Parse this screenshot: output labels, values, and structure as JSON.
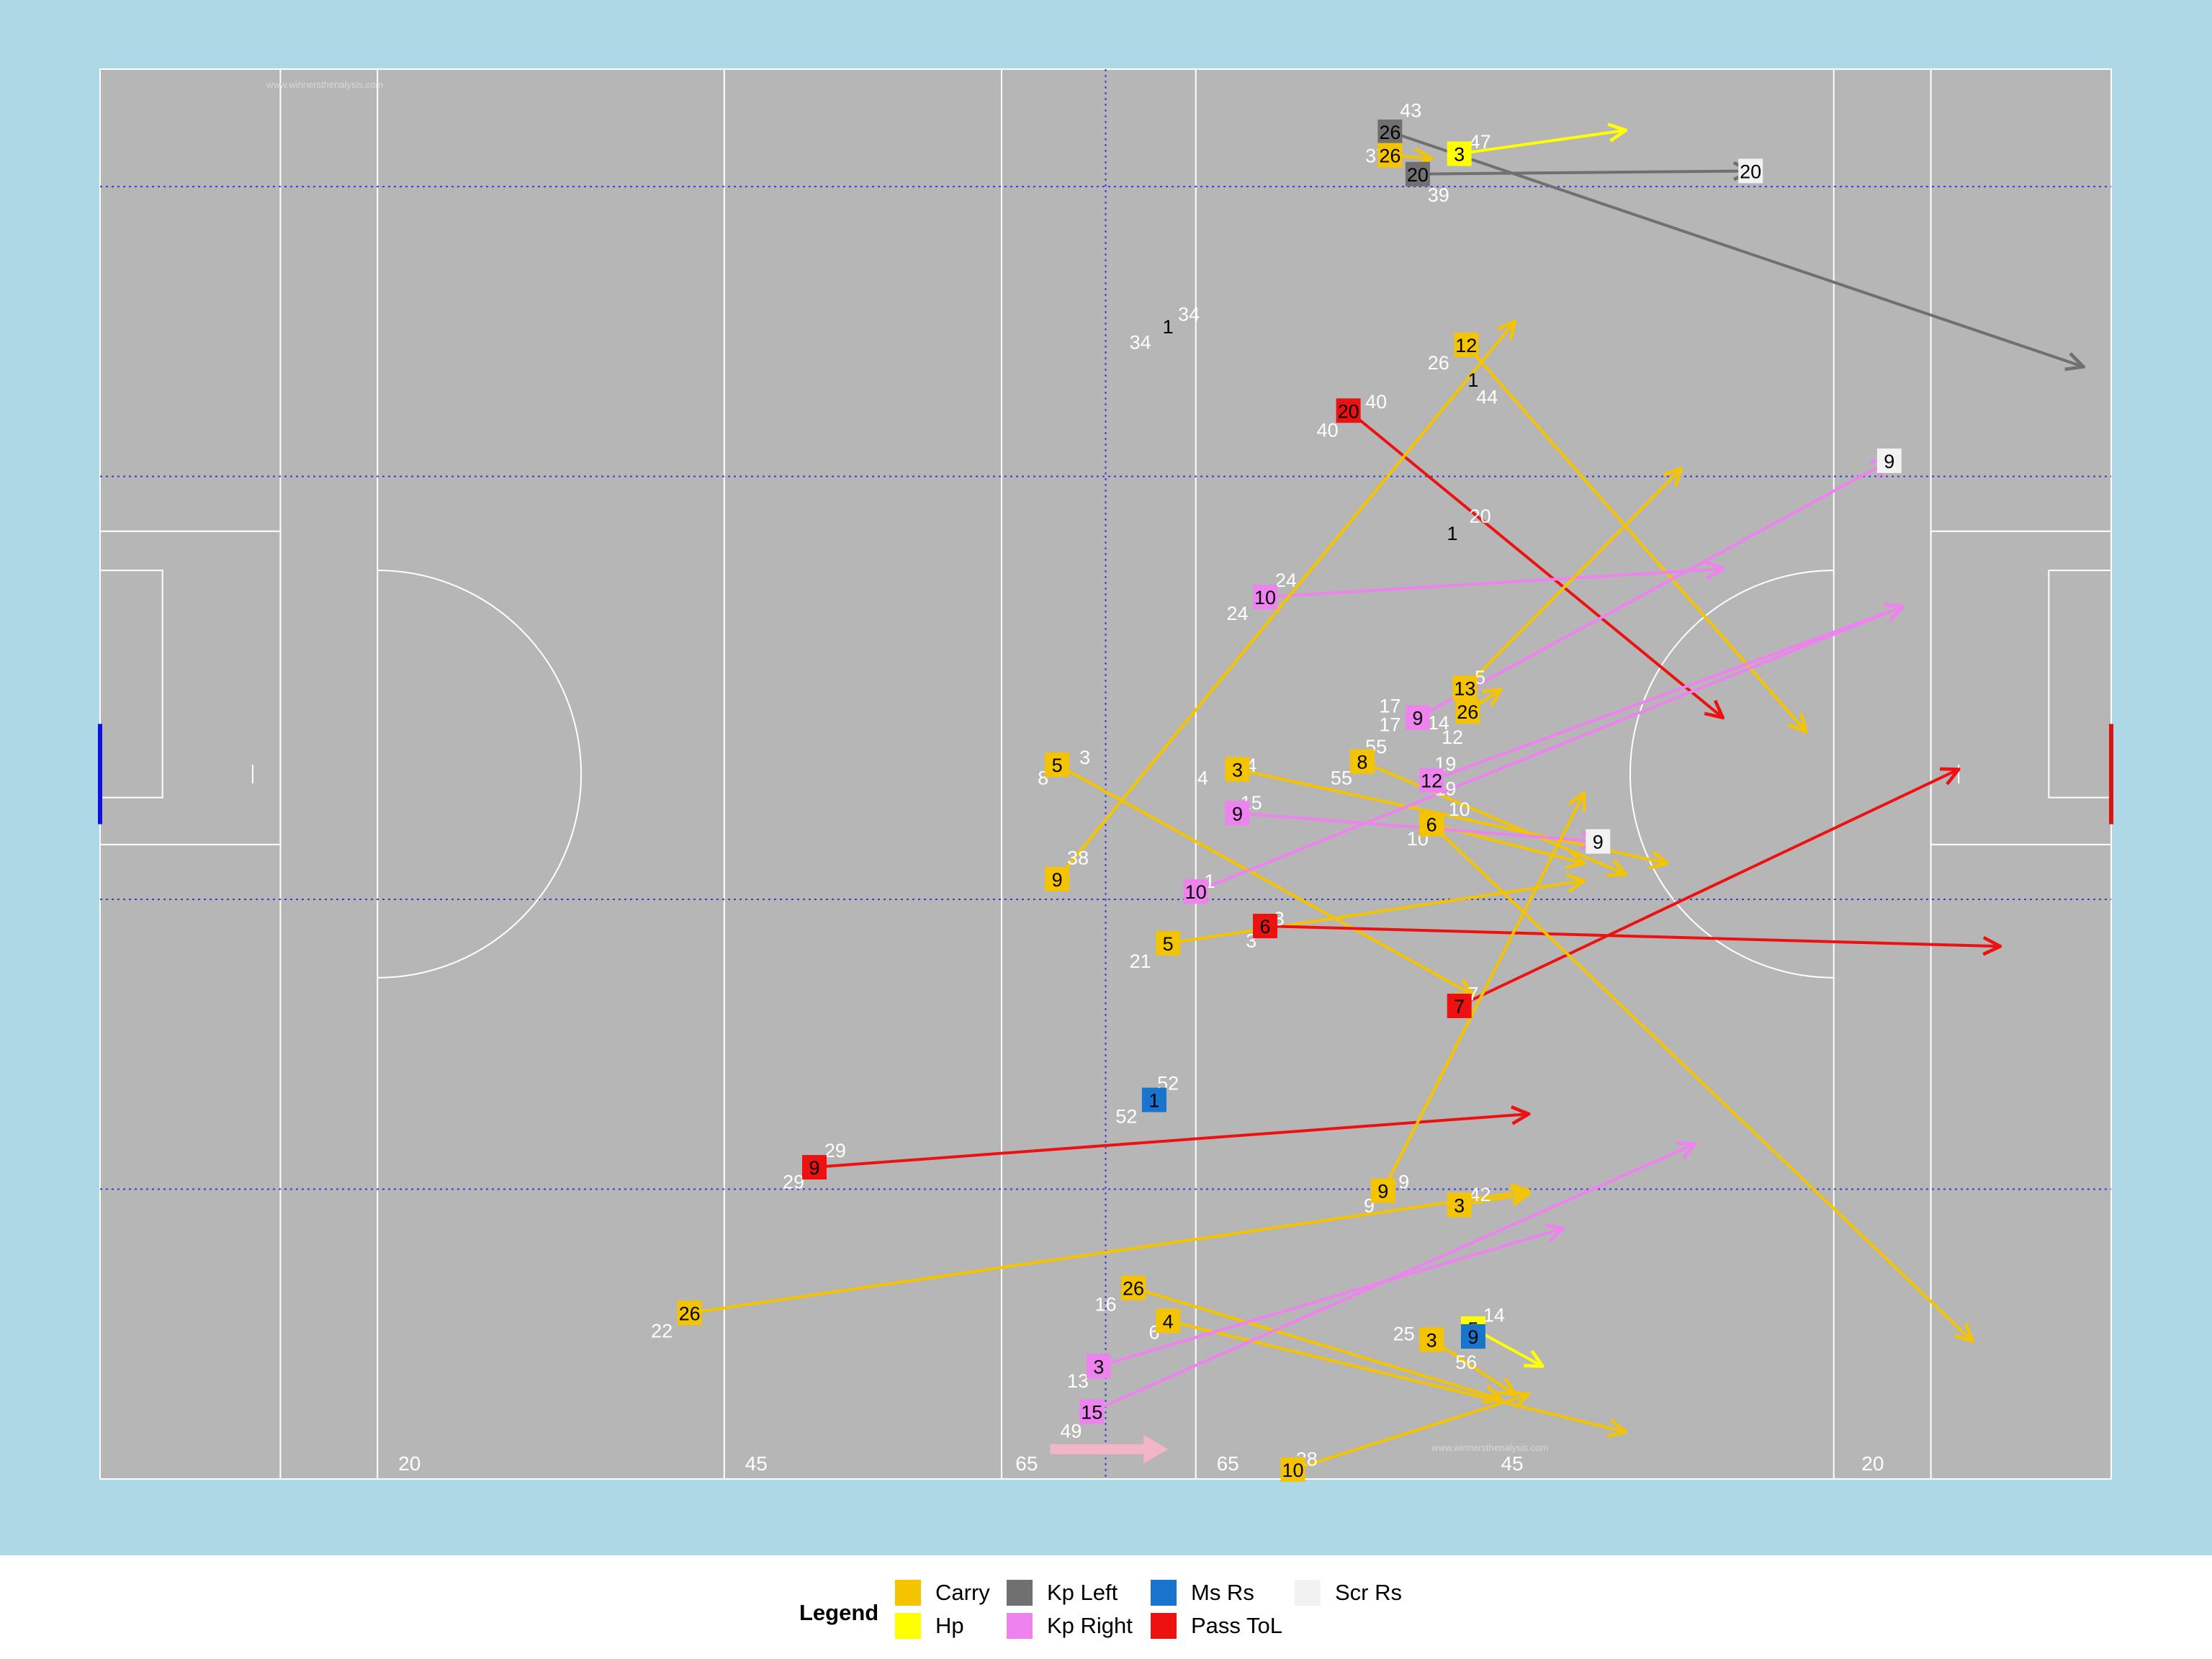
{
  "colors": {
    "background": "#add8e6",
    "pitch": "#b6b6b6",
    "lines": "#ffffff",
    "dotted": "#3b3bd6",
    "left_goal": "#1010e0",
    "right_goal": "#e01010",
    "label_white": "#ffffff",
    "label_dark": "#000000",
    "arrow_pink": "#f2b6c6",
    "watermark": "#d8d8d8"
  },
  "watermark": "www.winnersthenalysis.com",
  "distance_labels": [
    "20",
    "45",
    "65",
    "65",
    "45",
    "20"
  ],
  "legend": {
    "title": "Legend",
    "items": [
      {
        "label": "Carry",
        "color": "#f5c400"
      },
      {
        "label": "Hp",
        "color": "#ffff00"
      },
      {
        "label": "Kp Left",
        "color": "#707070"
      },
      {
        "label": "Kp Right",
        "color": "#ee82ee"
      },
      {
        "label": "Ms Rs",
        "color": "#1874cd"
      },
      {
        "label": "Pass ToL",
        "color": "#ee1111"
      },
      {
        "label": "Scr Rs",
        "color": "#f2f2f2"
      }
    ]
  },
  "chart_data": {
    "type": "scatter",
    "x_range": [
      0,
      145
    ],
    "y_range": [
      0,
      90
    ],
    "events": [
      {
        "type": "Kp Left",
        "num": "26",
        "x": 93,
        "y": 86,
        "ex": 143,
        "ey": 71
      },
      {
        "type": "Kp Left",
        "num": "20",
        "x": 95,
        "y": 83.3,
        "ex": 119,
        "ey": 83.5
      },
      {
        "type": "Carry",
        "num": "26",
        "x": 93,
        "y": 84.5,
        "ex": 96,
        "ey": 84.3
      },
      {
        "type": "Hp",
        "num": "3",
        "x": 98,
        "y": 84.6,
        "ex": 110,
        "ey": 86.1
      },
      {
        "type": "Scr Rs",
        "num": "20",
        "x": 119,
        "y": 83.5
      },
      {
        "type": "Carry",
        "num": "12",
        "x": 98.5,
        "y": 72.4,
        "ex": 123,
        "ey": 47.7
      },
      {
        "type": "Pass ToL",
        "num": "20",
        "x": 90,
        "y": 68.2,
        "ex": 117,
        "ey": 48.6
      },
      {
        "type": "Scr Rs",
        "num": "9",
        "x": 129,
        "y": 65
      },
      {
        "type": "Kp Right",
        "num": "10",
        "x": 84,
        "y": 56.3,
        "ex": 117,
        "ey": 58.1
      },
      {
        "type": "Carry",
        "num": "13",
        "x": 98.4,
        "y": 50.5,
        "ex": 114,
        "ey": 64.5
      },
      {
        "type": "Kp Right",
        "num": "9",
        "x": 95,
        "y": 48.6,
        "ex": 129,
        "ey": 65
      },
      {
        "type": "Carry",
        "num": "26",
        "x": 98.6,
        "y": 49,
        "ex": 101,
        "ey": 50.4
      },
      {
        "type": "Carry",
        "num": "5",
        "x": 69,
        "y": 45.6,
        "ex": 99,
        "ey": 30.9
      },
      {
        "type": "Carry",
        "num": "3",
        "x": 82,
        "y": 45.3,
        "ex": 113,
        "ey": 39.3
      },
      {
        "type": "Carry",
        "num": "8",
        "x": 91,
        "y": 45.8,
        "ex": 110,
        "ey": 38.6
      },
      {
        "type": "Kp Right",
        "num": "12",
        "x": 96,
        "y": 44.6,
        "ex": 130,
        "ey": 55.7
      },
      {
        "type": "Carry",
        "num": "6",
        "x": 96,
        "y": 41.8,
        "ex": 107,
        "ey": 39.3
      },
      {
        "type": "Kp Right",
        "num": "9",
        "x": 82,
        "y": 42.5,
        "ex": 108,
        "ey": 40.7
      },
      {
        "type": "Scr Rs",
        "num": "9",
        "x": 108,
        "y": 40.7
      },
      {
        "type": "Carry",
        "num": "9",
        "x": 69,
        "y": 38.3,
        "ex": 102,
        "ey": 73.9
      },
      {
        "type": "Kp Right",
        "num": "10",
        "x": 79,
        "y": 37.5,
        "ex": 130,
        "ey": 55.7
      },
      {
        "type": "Carry",
        "num": "5",
        "x": 77,
        "y": 34.2,
        "ex": 107,
        "ey": 38.2
      },
      {
        "type": "Pass ToL",
        "num": "6",
        "x": 84,
        "y": 35.3,
        "ex": 137,
        "ey": 34
      },
      {
        "type": "Pass ToL",
        "num": "7",
        "x": 98,
        "y": 30.2,
        "ex": 134,
        "ey": 45.3
      },
      {
        "type": "Ms Rs",
        "num": "1",
        "x": 76,
        "y": 24.2
      },
      {
        "type": "Pass ToL",
        "num": "9",
        "x": 51.5,
        "y": 19.9,
        "ex": 103,
        "ey": 23.3
      },
      {
        "type": "Carry",
        "num": "9",
        "x": 92.5,
        "y": 18.4,
        "ex": 107,
        "ey": 43.8
      },
      {
        "type": "Carry",
        "num": "3",
        "x": 98,
        "y": 17.5,
        "ex": 103,
        "ey": 18.2
      },
      {
        "type": "Carry",
        "num": "26",
        "x": 42.5,
        "y": 10.6,
        "ex": 103,
        "ey": 18.4
      },
      {
        "type": "Carry",
        "num": "26",
        "x": 74.5,
        "y": 12.2,
        "ex": 101,
        "ey": 5.1
      },
      {
        "type": "Carry",
        "num": "4",
        "x": 77,
        "y": 10.1,
        "ex": 110,
        "ey": 3
      },
      {
        "type": "Carry",
        "num": "3",
        "x": 96,
        "y": 8.9,
        "ex": 102,
        "ey": 5.4
      },
      {
        "type": "Hp",
        "num": "5",
        "x": 99,
        "y": 9.6,
        "ex": 104,
        "ey": 7.2
      },
      {
        "type": "Ms Rs",
        "num": "9",
        "x": 99,
        "y": 9.1
      },
      {
        "type": "Kp Right",
        "num": "3",
        "x": 72,
        "y": 7.2,
        "ex": 105.5,
        "ey": 16
      },
      {
        "type": "Kp Right",
        "num": "15",
        "x": 71.5,
        "y": 4.3,
        "ex": 115,
        "ey": 21.4
      },
      {
        "type": "Carry",
        "num": "10",
        "x": 86,
        "y": 0.6,
        "ex": 103,
        "ey": 5.4
      },
      {
        "type": "Carry",
        "num": "6",
        "x": 96,
        "y": 41.8,
        "ex": 135,
        "ey": 8.8
      }
    ],
    "labels": [
      {
        "text": "43",
        "x": 94.5,
        "y": 87.4
      },
      {
        "text": "37",
        "x": 92,
        "y": 84.5
      },
      {
        "text": "47",
        "x": 99.5,
        "y": 85.4
      },
      {
        "text": "39",
        "x": 96.5,
        "y": 82
      },
      {
        "text": "34",
        "x": 78.5,
        "y": 74.4
      },
      {
        "text": "34",
        "x": 75,
        "y": 72.6
      },
      {
        "text": "1",
        "x": 77,
        "y": 73.6,
        "dark": true
      },
      {
        "text": "26",
        "x": 96.5,
        "y": 71.3
      },
      {
        "text": "1",
        "x": 99,
        "y": 70.2,
        "dark": true
      },
      {
        "text": "44",
        "x": 100,
        "y": 69.1
      },
      {
        "text": "40",
        "x": 92,
        "y": 68.8
      },
      {
        "text": "40",
        "x": 88.5,
        "y": 67
      },
      {
        "text": "20",
        "x": 99.5,
        "y": 61.5
      },
      {
        "text": "1",
        "x": 97.5,
        "y": 60.4,
        "dark": true
      },
      {
        "text": "24",
        "x": 85.5,
        "y": 57.4
      },
      {
        "text": "24",
        "x": 82,
        "y": 55.3
      },
      {
        "text": "5",
        "x": 99.5,
        "y": 51.2
      },
      {
        "text": "17",
        "x": 93,
        "y": 49.4
      },
      {
        "text": "17",
        "x": 93,
        "y": 48.2
      },
      {
        "text": "14",
        "x": 96.5,
        "y": 48.3
      },
      {
        "text": "12",
        "x": 97.5,
        "y": 47.4
      },
      {
        "text": "3",
        "x": 71,
        "y": 46.1
      },
      {
        "text": "8",
        "x": 68,
        "y": 44.8
      },
      {
        "text": "4",
        "x": 83,
        "y": 45.6
      },
      {
        "text": "4",
        "x": 79.5,
        "y": 44.8
      },
      {
        "text": "55",
        "x": 92,
        "y": 46.8
      },
      {
        "text": "55",
        "x": 89.5,
        "y": 44.8
      },
      {
        "text": "19",
        "x": 97,
        "y": 45.7
      },
      {
        "text": "19",
        "x": 97,
        "y": 44.1
      },
      {
        "text": "10",
        "x": 98,
        "y": 42.8
      },
      {
        "text": "10",
        "x": 95,
        "y": 40.9
      },
      {
        "text": "15",
        "x": 83,
        "y": 43.2
      },
      {
        "text": "38",
        "x": 70.5,
        "y": 39.7
      },
      {
        "text": "1",
        "x": 80,
        "y": 38.2
      },
      {
        "text": "3",
        "x": 85,
        "y": 35.8
      },
      {
        "text": "3",
        "x": 83,
        "y": 34.4
      },
      {
        "text": "21",
        "x": 75,
        "y": 33.1
      },
      {
        "text": "7",
        "x": 99,
        "y": 31
      },
      {
        "text": "52",
        "x": 77,
        "y": 25.3
      },
      {
        "text": "52",
        "x": 74,
        "y": 23.2
      },
      {
        "text": "29",
        "x": 53,
        "y": 21
      },
      {
        "text": "29",
        "x": 50,
        "y": 19
      },
      {
        "text": "9",
        "x": 94,
        "y": 19
      },
      {
        "text": "9",
        "x": 91.5,
        "y": 17.5
      },
      {
        "text": "42",
        "x": 99.5,
        "y": 18.2
      },
      {
        "text": "22",
        "x": 40.5,
        "y": 9.5
      },
      {
        "text": "16",
        "x": 72.5,
        "y": 11.2
      },
      {
        "text": "6",
        "x": 76,
        "y": 9.4
      },
      {
        "text": "25",
        "x": 94,
        "y": 9.3
      },
      {
        "text": "14",
        "x": 100.5,
        "y": 10.5
      },
      {
        "text": "56",
        "x": 98.5,
        "y": 7.5
      },
      {
        "text": "13",
        "x": 70.5,
        "y": 6.3
      },
      {
        "text": "49",
        "x": 70,
        "y": 3.1
      },
      {
        "text": "28",
        "x": 87,
        "y": 1.3
      }
    ],
    "direction_arrow": {
      "x": 68.5,
      "y": 1.9,
      "ex": 77,
      "ey": 1.9
    }
  }
}
